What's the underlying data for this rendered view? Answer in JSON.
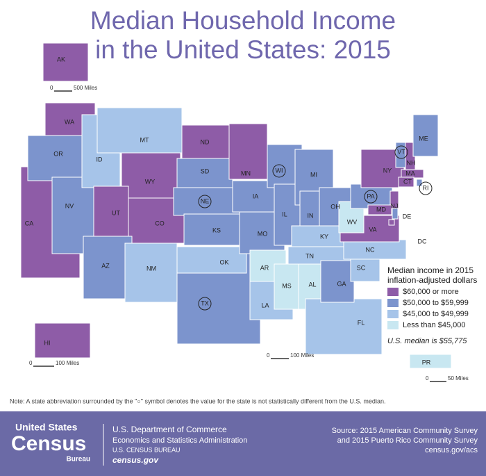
{
  "title_lines": [
    "Median Household Income",
    "in the United States: 2015"
  ],
  "legend": {
    "title_lines": [
      "Median income in 2015",
      "inflation-adjusted dollars"
    ],
    "items": [
      {
        "label": "$60,000 or more",
        "color": "#8e5ca7"
      },
      {
        "label": "$50,000 to $59,999",
        "color": "#7c94cd"
      },
      {
        "label": "$45,000 to $49,999",
        "color": "#a6c4e9"
      },
      {
        "label": "Less than $45,000",
        "color": "#c8e7f1"
      }
    ]
  },
  "median_note": "U.S. median is $55,775",
  "states": [
    {
      "abbr": "AK",
      "tier": 0,
      "circled": false
    },
    {
      "abbr": "WA",
      "tier": 0,
      "circled": false
    },
    {
      "abbr": "CA",
      "tier": 0,
      "circled": false
    },
    {
      "abbr": "OR",
      "tier": 1,
      "circled": false
    },
    {
      "abbr": "NV",
      "tier": 1,
      "circled": false
    },
    {
      "abbr": "ID",
      "tier": 2,
      "circled": false
    },
    {
      "abbr": "MT",
      "tier": 2,
      "circled": false
    },
    {
      "abbr": "WY",
      "tier": 0,
      "circled": false
    },
    {
      "abbr": "UT",
      "tier": 0,
      "circled": false
    },
    {
      "abbr": "CO",
      "tier": 0,
      "circled": false
    },
    {
      "abbr": "AZ",
      "tier": 1,
      "circled": false
    },
    {
      "abbr": "NM",
      "tier": 2,
      "circled": false
    },
    {
      "abbr": "ND",
      "tier": 0,
      "circled": false
    },
    {
      "abbr": "SD",
      "tier": 1,
      "circled": false
    },
    {
      "abbr": "NE",
      "tier": 1,
      "circled": true
    },
    {
      "abbr": "KS",
      "tier": 1,
      "circled": false
    },
    {
      "abbr": "TX",
      "tier": 1,
      "circled": true
    },
    {
      "abbr": "OK",
      "tier": 2,
      "circled": false
    },
    {
      "abbr": "MN",
      "tier": 0,
      "circled": false
    },
    {
      "abbr": "IA",
      "tier": 1,
      "circled": false
    },
    {
      "abbr": "MO",
      "tier": 1,
      "circled": false
    },
    {
      "abbr": "AR",
      "tier": 3,
      "circled": false
    },
    {
      "abbr": "LA",
      "tier": 2,
      "circled": false
    },
    {
      "abbr": "WI",
      "tier": 1,
      "circled": true
    },
    {
      "abbr": "IL",
      "tier": 1,
      "circled": false
    },
    {
      "abbr": "MI",
      "tier": 1,
      "circled": false
    },
    {
      "abbr": "IN",
      "tier": 1,
      "circled": false
    },
    {
      "abbr": "OH",
      "tier": 1,
      "circled": false
    },
    {
      "abbr": "KY",
      "tier": 2,
      "circled": false
    },
    {
      "abbr": "TN",
      "tier": 2,
      "circled": false
    },
    {
      "abbr": "MS",
      "tier": 3,
      "circled": false
    },
    {
      "abbr": "AL",
      "tier": 3,
      "circled": false
    },
    {
      "abbr": "FL",
      "tier": 2,
      "circled": false
    },
    {
      "abbr": "GA",
      "tier": 1,
      "circled": false
    },
    {
      "abbr": "SC",
      "tier": 2,
      "circled": false
    },
    {
      "abbr": "NC",
      "tier": 2,
      "circled": false
    },
    {
      "abbr": "VA",
      "tier": 0,
      "circled": false
    },
    {
      "abbr": "WV",
      "tier": 3,
      "circled": false
    },
    {
      "abbr": "PA",
      "tier": 1,
      "circled": true
    },
    {
      "abbr": "NY",
      "tier": 0,
      "circled": false
    },
    {
      "abbr": "VT",
      "tier": 1,
      "circled": true
    },
    {
      "abbr": "NH",
      "tier": 0,
      "circled": false
    },
    {
      "abbr": "ME",
      "tier": 1,
      "circled": false
    },
    {
      "abbr": "MA",
      "tier": 0,
      "circled": false
    },
    {
      "abbr": "RI",
      "tier": 1,
      "circled": true
    },
    {
      "abbr": "CT",
      "tier": 0,
      "circled": false
    },
    {
      "abbr": "NJ",
      "tier": 0,
      "circled": false
    },
    {
      "abbr": "DE",
      "tier": 1,
      "circled": false
    },
    {
      "abbr": "MD",
      "tier": 0,
      "circled": false
    },
    {
      "abbr": "DC",
      "tier": 0,
      "circled": false
    },
    {
      "abbr": "HI",
      "tier": 0,
      "circled": false
    },
    {
      "abbr": "PR",
      "tier": 3,
      "circled": false
    }
  ],
  "scale_bars": [
    {
      "zero": "0",
      "label": "500 Miles"
    },
    {
      "zero": "0",
      "label": "100 Miles"
    },
    {
      "zero": "0",
      "label": "100 Miles"
    },
    {
      "zero": "0",
      "label": "50 Miles"
    }
  ],
  "note": "Note: A state abbreviation surrounded by the \"○\" symbol denotes the value for the state is not statistically different from the U.S. median.",
  "footer": {
    "logo": {
      "top": "United States",
      "main": "Census",
      "bottom": "Bureau"
    },
    "agency_lines": [
      "U.S. Department of Commerce",
      "Economics and Statistics Administration",
      "U.S. CENSUS BUREAU",
      "census.gov"
    ],
    "source_lines": [
      "Source: 2015 American Community Survey",
      "and 2015 Puerto Rico Community Survey",
      "census.gov/acs"
    ]
  }
}
